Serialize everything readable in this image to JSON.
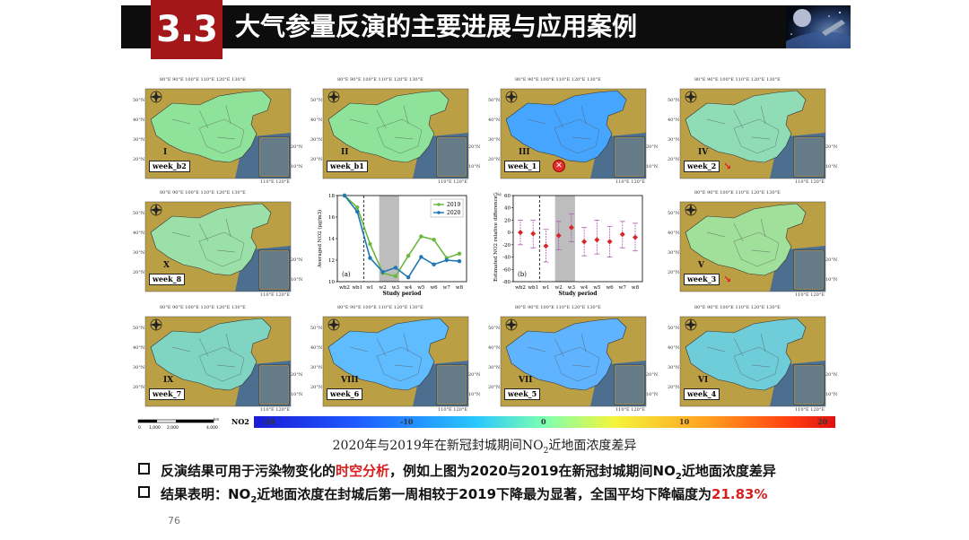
{
  "header": {
    "number": "3.3",
    "title": "大气参量反演的主要进展与应用案例"
  },
  "maps": [
    {
      "roman": "I",
      "week": "week_b2"
    },
    {
      "roman": "II",
      "week": "week_b1"
    },
    {
      "roman": "III",
      "week": "week_1"
    },
    {
      "roman": "IV",
      "week": "week_2"
    },
    {
      "roman": "X",
      "week": "week_8"
    },
    {
      "roman": "V",
      "week": "week_3"
    },
    {
      "roman": "IX",
      "week": "week_7"
    },
    {
      "roman": "VIII",
      "week": "week_6"
    },
    {
      "roman": "VII",
      "week": "week_5"
    },
    {
      "roman": "VI",
      "week": "week_4"
    }
  ],
  "map_ticks": {
    "top": [
      "80°E",
      "90°E",
      "100°E",
      "110°E",
      "120°E",
      "130°E"
    ],
    "left": [
      "50°N",
      "40°N",
      "30°N",
      "20°N"
    ],
    "inset_right": [
      "20°N",
      "10°N"
    ],
    "inset_bottom": [
      "110°E",
      "120°E"
    ]
  },
  "chart_data": [
    {
      "type": "line",
      "panel_label": "(a)",
      "ylabel": "Averaged NO2 (μg/m3)",
      "xlabel": "Study period",
      "categories": [
        "wb2",
        "wb1",
        "w1",
        "w2",
        "w3",
        "w4",
        "w5",
        "w6",
        "w7",
        "w8"
      ],
      "ylim": [
        10,
        18
      ],
      "yticks": [
        10,
        12,
        14,
        16,
        18
      ],
      "shaded_range": [
        "w2",
        "w3"
      ],
      "dashed_line_after": "wb1",
      "legend": "top-right",
      "series": [
        {
          "name": "2019",
          "color": "#6ab83c",
          "values": [
            18.0,
            16.9,
            13.5,
            10.8,
            10.5,
            12.4,
            14.2,
            13.9,
            12.2,
            12.6
          ]
        },
        {
          "name": "2020",
          "color": "#1f77b4",
          "values": [
            18.0,
            16.5,
            12.2,
            10.9,
            11.3,
            10.4,
            12.3,
            11.6,
            12.0,
            11.9
          ]
        }
      ]
    },
    {
      "type": "scatter",
      "panel_label": "(b)",
      "ylabel": "Estimated NO2 relative difference",
      "y_unit": "(%)",
      "xlabel": "Study period",
      "categories": [
        "wb2",
        "wb1",
        "w1",
        "w2",
        "w3",
        "w4",
        "w5",
        "w6",
        "w7",
        "w8"
      ],
      "ylim": [
        -80,
        60
      ],
      "yticks": [
        -80,
        -60,
        -40,
        -20,
        0,
        20,
        40,
        60
      ],
      "shaded_range": [
        "w2",
        "w3"
      ],
      "dashed_line_after": "wb1",
      "values": [
        0,
        -2,
        -22,
        -5,
        8,
        -15,
        -12,
        -15,
        -3,
        -8
      ],
      "error_low": [
        -20,
        -25,
        -48,
        -28,
        -15,
        -38,
        -35,
        -40,
        -25,
        -30
      ],
      "error_high": [
        20,
        20,
        5,
        18,
        30,
        8,
        20,
        10,
        18,
        15
      ],
      "color": "#d62728",
      "error_color": "#b05fb0"
    }
  ],
  "colorbar": {
    "label": "NO2",
    "ticks": [
      "-20",
      "-10",
      "0",
      "10",
      "20"
    ]
  },
  "scale_bar": {
    "labels": [
      "0",
      "1,000",
      "2,000",
      "4,000"
    ],
    "unit": "km"
  },
  "caption": {
    "main": "2020年与2019年在新冠封城期间NO",
    "sub": "2",
    "end": "近地面浓度差异"
  },
  "bullets": [
    {
      "a": "反演结果可用于污染物变化的",
      "highlight": "时空分析",
      "b": "，例如上图为2020与2019在新冠封城期间NO",
      "sub": "2",
      "c": "近地面浓度差异"
    },
    {
      "a": "结果表明：NO",
      "sub": "2",
      "b": "近地面浓度在封城后第一周相较于2019下降最为显著，全国平均下降幅度为",
      "highlight": "21.83%"
    }
  ],
  "page_number": "76"
}
